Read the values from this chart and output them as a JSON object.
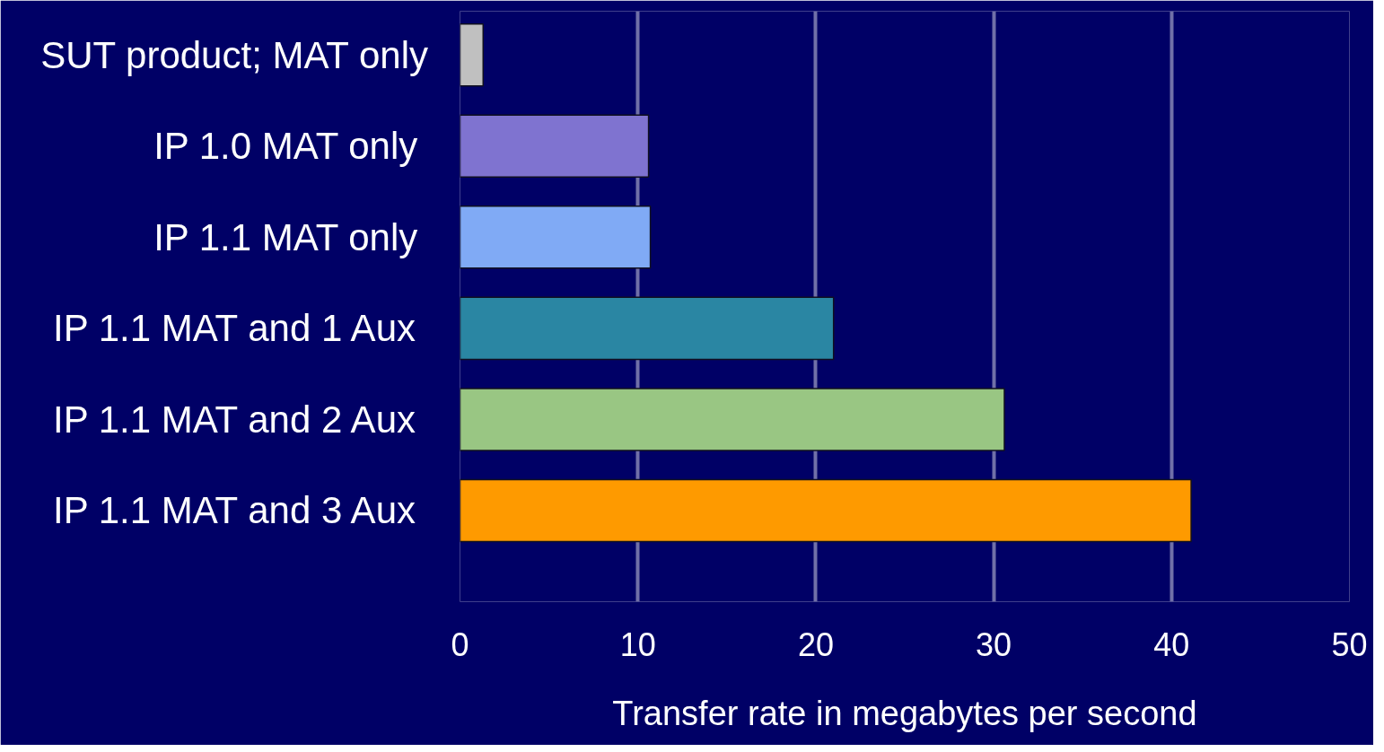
{
  "chart_data": {
    "type": "bar",
    "orientation": "horizontal",
    "categories": [
      "SUT product; MAT only",
      "IP 1.0  MAT only",
      "IP 1.1  MAT only",
      "IP 1.1  MAT and 1 Aux",
      "IP 1.1  MAT and 2 Aux",
      "IP 1.1  MAT and 3 Aux"
    ],
    "values": [
      1.3,
      10.6,
      10.7,
      21.0,
      30.6,
      41.1
    ],
    "colors": [
      "#c0c0c0",
      "#7f73d0",
      "#80aaf5",
      "#2a86a3",
      "#99c683",
      "#fe9a00"
    ],
    "xlabel": "Transfer rate in megabytes per second",
    "xlim": [
      0,
      50
    ],
    "xticks": [
      0,
      10,
      20,
      30,
      40,
      50
    ],
    "grid": "x"
  }
}
